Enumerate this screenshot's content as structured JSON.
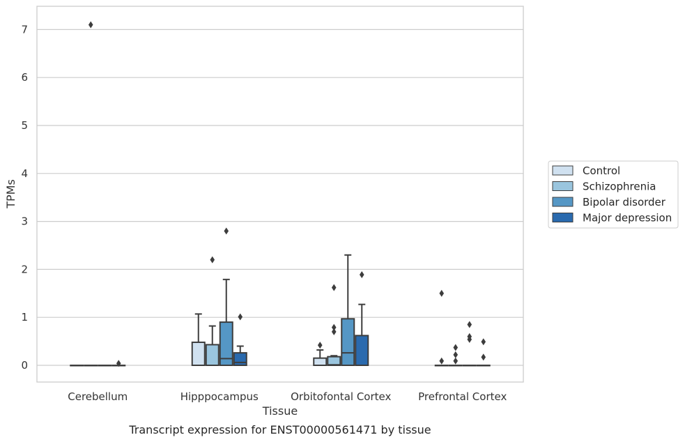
{
  "chart_data": {
    "type": "box",
    "caption": "Transcript expression for ENST00000561471 by tissue",
    "xlabel": "Tissue",
    "ylabel": "TPMs",
    "ylim": [
      -0.35,
      7.5
    ],
    "yticks": [
      0,
      1,
      2,
      3,
      4,
      5,
      6,
      7
    ],
    "grid": true,
    "legend_position": "right",
    "categories": [
      "Cerebellum",
      "Hipppocampus",
      "Orbitofontal Cortex",
      "Prefrontal Cortex"
    ],
    "series": [
      {
        "name": "Control",
        "color": "#d0e1f0",
        "boxes": [
          {
            "q1": 0,
            "median": 0,
            "q3": 0,
            "whisker_low": 0,
            "whisker_high": 0,
            "outliers": []
          },
          {
            "q1": 0,
            "median": 0,
            "q3": 0.48,
            "whisker_low": 0,
            "whisker_high": 1.07,
            "outliers": []
          },
          {
            "q1": 0,
            "median": 0,
            "q3": 0.15,
            "whisker_low": 0,
            "whisker_high": 0.32,
            "outliers": [
              0.42
            ]
          },
          {
            "q1": 0,
            "median": 0,
            "q3": 0,
            "whisker_low": 0,
            "whisker_high": 0,
            "outliers": [
              1.5,
              0.09
            ]
          }
        ]
      },
      {
        "name": "Schizophrenia",
        "color": "#9ac5de",
        "boxes": [
          {
            "q1": 0,
            "median": 0,
            "q3": 0,
            "whisker_low": 0,
            "whisker_high": 0,
            "outliers": [
              7.1
            ]
          },
          {
            "q1": 0,
            "median": 0,
            "q3": 0.43,
            "whisker_low": 0,
            "whisker_high": 0.82,
            "outliers": [
              2.2
            ]
          },
          {
            "q1": 0,
            "median": 0.01,
            "q3": 0.18,
            "whisker_low": 0,
            "whisker_high": 0.2,
            "outliers": [
              0.79,
              0.7,
              1.62
            ]
          },
          {
            "q1": 0,
            "median": 0,
            "q3": 0,
            "whisker_low": 0,
            "whisker_high": 0,
            "outliers": [
              0.37,
              0.22,
              0.09
            ]
          }
        ]
      },
      {
        "name": "Bipolar disorder",
        "color": "#5597c5",
        "boxes": [
          {
            "q1": 0,
            "median": 0,
            "q3": 0,
            "whisker_low": 0,
            "whisker_high": 0,
            "outliers": []
          },
          {
            "q1": 0,
            "median": 0.14,
            "q3": 0.9,
            "whisker_low": 0,
            "whisker_high": 1.79,
            "outliers": [
              2.8
            ]
          },
          {
            "q1": 0,
            "median": 0.26,
            "q3": 0.97,
            "whisker_low": 0,
            "whisker_high": 2.3,
            "outliers": []
          },
          {
            "q1": 0,
            "median": 0,
            "q3": 0,
            "whisker_low": 0,
            "whisker_high": 0,
            "outliers": [
              0.85,
              0.6,
              0.54
            ]
          }
        ]
      },
      {
        "name": "Major depression",
        "color": "#2a6aae",
        "boxes": [
          {
            "q1": 0,
            "median": 0,
            "q3": 0,
            "whisker_low": 0,
            "whisker_high": 0,
            "outliers": [
              0.04
            ]
          },
          {
            "q1": 0,
            "median": 0.06,
            "q3": 0.26,
            "whisker_low": 0,
            "whisker_high": 0.4,
            "outliers": [
              1.01
            ]
          },
          {
            "q1": 0,
            "median": 0,
            "q3": 0.62,
            "whisker_low": 0,
            "whisker_high": 1.27,
            "outliers": [
              1.89
            ]
          },
          {
            "q1": 0,
            "median": 0,
            "q3": 0,
            "whisker_low": 0,
            "whisker_high": 0,
            "outliers": [
              0.49,
              0.17
            ]
          }
        ]
      }
    ]
  }
}
